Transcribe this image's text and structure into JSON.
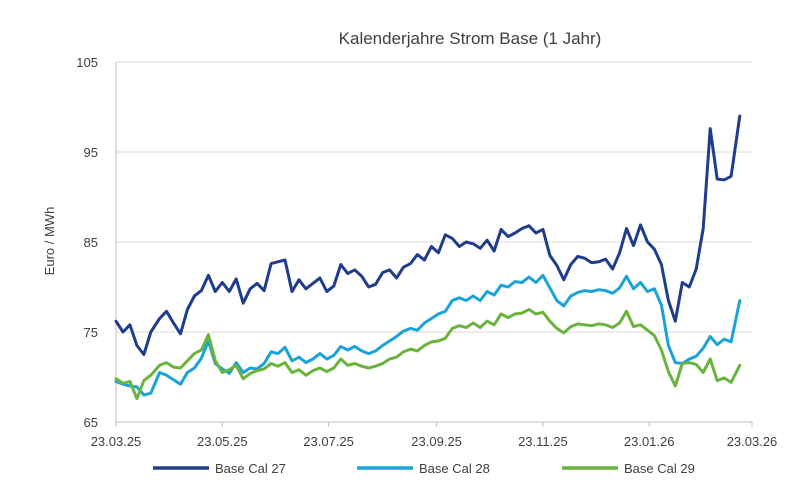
{
  "chart_data": {
    "type": "line",
    "title": "Kalenderjahre Strom Base (1 Jahr)",
    "xlabel": "",
    "ylabel": "Euro / MWh",
    "ylim": [
      65,
      105
    ],
    "yticks": [
      65,
      75,
      85,
      95,
      105
    ],
    "xticks": [
      "23.03.25",
      "23.05.25",
      "23.07.25",
      "23.09.25",
      "23.11.25",
      "23.01.26",
      "23.03.26"
    ],
    "xlim": [
      "2025-03-23",
      "2026-03-23"
    ],
    "grid": "horizontal",
    "legend_position": "bottom",
    "series": [
      {
        "name": "Base Cal 27",
        "color": "#1f3d8a",
        "points": [
          [
            "2025-03-23",
            76.2
          ],
          [
            "2025-03-27",
            75.0
          ],
          [
            "2025-03-31",
            75.8
          ],
          [
            "2025-04-04",
            73.5
          ],
          [
            "2025-04-08",
            72.5
          ],
          [
            "2025-04-12",
            75.0
          ],
          [
            "2025-04-17",
            76.5
          ],
          [
            "2025-04-21",
            77.3
          ],
          [
            "2025-04-25",
            76.0
          ],
          [
            "2025-04-29",
            74.8
          ],
          [
            "2025-05-03",
            77.5
          ],
          [
            "2025-05-07",
            79.0
          ],
          [
            "2025-05-11",
            79.6
          ],
          [
            "2025-05-15",
            81.3
          ],
          [
            "2025-05-19",
            79.5
          ],
          [
            "2025-05-23",
            80.5
          ],
          [
            "2025-05-27",
            79.5
          ],
          [
            "2025-05-31",
            80.9
          ],
          [
            "2025-06-04",
            78.2
          ],
          [
            "2025-06-08",
            79.8
          ],
          [
            "2025-06-12",
            80.4
          ],
          [
            "2025-06-16",
            79.6
          ],
          [
            "2025-06-20",
            82.6
          ],
          [
            "2025-06-24",
            82.8
          ],
          [
            "2025-06-28",
            83.0
          ],
          [
            "2025-07-02",
            79.5
          ],
          [
            "2025-07-06",
            80.8
          ],
          [
            "2025-07-10",
            79.8
          ],
          [
            "2025-07-14",
            80.4
          ],
          [
            "2025-07-18",
            81.0
          ],
          [
            "2025-07-22",
            79.5
          ],
          [
            "2025-07-26",
            80.1
          ],
          [
            "2025-07-30",
            82.5
          ],
          [
            "2025-08-03",
            81.5
          ],
          [
            "2025-08-07",
            81.9
          ],
          [
            "2025-08-11",
            81.2
          ],
          [
            "2025-08-15",
            80.0
          ],
          [
            "2025-08-19",
            80.3
          ],
          [
            "2025-08-23",
            81.6
          ],
          [
            "2025-08-27",
            81.9
          ],
          [
            "2025-08-31",
            81.0
          ],
          [
            "2025-09-04",
            82.2
          ],
          [
            "2025-09-08",
            82.6
          ],
          [
            "2025-09-12",
            83.6
          ],
          [
            "2025-09-16",
            83.0
          ],
          [
            "2025-09-20",
            84.5
          ],
          [
            "2025-09-24",
            83.8
          ],
          [
            "2025-09-28",
            85.8
          ],
          [
            "2025-10-02",
            85.4
          ],
          [
            "2025-10-06",
            84.5
          ],
          [
            "2025-10-10",
            85.0
          ],
          [
            "2025-10-14",
            84.8
          ],
          [
            "2025-10-18",
            84.3
          ],
          [
            "2025-10-22",
            85.2
          ],
          [
            "2025-10-26",
            84.0
          ],
          [
            "2025-10-30",
            86.4
          ],
          [
            "2025-11-03",
            85.6
          ],
          [
            "2025-11-07",
            86.0
          ],
          [
            "2025-11-11",
            86.5
          ],
          [
            "2025-11-15",
            86.8
          ],
          [
            "2025-11-19",
            86.0
          ],
          [
            "2025-11-23",
            86.4
          ],
          [
            "2025-11-27",
            83.5
          ],
          [
            "2025-12-01",
            82.4
          ],
          [
            "2025-12-05",
            80.8
          ],
          [
            "2025-12-09",
            82.5
          ],
          [
            "2025-12-13",
            83.4
          ],
          [
            "2025-12-17",
            83.2
          ],
          [
            "2025-12-21",
            82.7
          ],
          [
            "2025-12-25",
            82.8
          ],
          [
            "2025-12-29",
            83.1
          ],
          [
            "2026-01-02",
            82.0
          ],
          [
            "2026-01-06",
            83.8
          ],
          [
            "2026-01-10",
            86.5
          ],
          [
            "2026-01-14",
            84.6
          ],
          [
            "2026-01-18",
            86.9
          ],
          [
            "2026-01-22",
            85.0
          ],
          [
            "2026-01-26",
            84.2
          ],
          [
            "2026-01-30",
            82.5
          ],
          [
            "2026-02-03",
            78.5
          ],
          [
            "2026-02-07",
            76.2
          ],
          [
            "2026-02-11",
            80.5
          ],
          [
            "2026-02-15",
            80.0
          ],
          [
            "2026-02-19",
            82.0
          ],
          [
            "2026-02-23",
            86.5
          ],
          [
            "2026-02-27",
            97.6
          ],
          [
            "2026-03-03",
            92.0
          ],
          [
            "2026-03-07",
            91.9
          ],
          [
            "2026-03-11",
            92.3
          ],
          [
            "2026-03-16",
            99.0
          ]
        ]
      },
      {
        "name": "Base Cal 28",
        "color": "#1aa3d8",
        "points": [
          [
            "2025-03-23",
            69.5
          ],
          [
            "2025-03-27",
            69.2
          ],
          [
            "2025-03-31",
            69.0
          ],
          [
            "2025-04-04",
            68.9
          ],
          [
            "2025-04-08",
            68.0
          ],
          [
            "2025-04-12",
            68.2
          ],
          [
            "2025-04-17",
            70.5
          ],
          [
            "2025-04-21",
            70.2
          ],
          [
            "2025-04-25",
            69.7
          ],
          [
            "2025-04-29",
            69.2
          ],
          [
            "2025-05-03",
            70.5
          ],
          [
            "2025-05-07",
            71.0
          ],
          [
            "2025-05-11",
            72.1
          ],
          [
            "2025-05-15",
            74.0
          ],
          [
            "2025-05-19",
            71.5
          ],
          [
            "2025-05-23",
            70.9
          ],
          [
            "2025-05-27",
            70.4
          ],
          [
            "2025-05-31",
            71.6
          ],
          [
            "2025-06-04",
            70.5
          ],
          [
            "2025-06-08",
            71.0
          ],
          [
            "2025-06-12",
            70.9
          ],
          [
            "2025-06-16",
            71.5
          ],
          [
            "2025-06-20",
            72.8
          ],
          [
            "2025-06-24",
            72.6
          ],
          [
            "2025-06-28",
            73.3
          ],
          [
            "2025-07-02",
            71.8
          ],
          [
            "2025-07-06",
            72.2
          ],
          [
            "2025-07-10",
            71.6
          ],
          [
            "2025-07-14",
            72.0
          ],
          [
            "2025-07-18",
            72.6
          ],
          [
            "2025-07-22",
            72.0
          ],
          [
            "2025-07-26",
            72.4
          ],
          [
            "2025-07-30",
            73.4
          ],
          [
            "2025-08-03",
            73.0
          ],
          [
            "2025-08-07",
            73.4
          ],
          [
            "2025-08-11",
            72.9
          ],
          [
            "2025-08-15",
            72.6
          ],
          [
            "2025-08-19",
            72.9
          ],
          [
            "2025-08-23",
            73.5
          ],
          [
            "2025-08-27",
            74.0
          ],
          [
            "2025-08-31",
            74.5
          ],
          [
            "2025-09-04",
            75.1
          ],
          [
            "2025-09-08",
            75.4
          ],
          [
            "2025-09-12",
            75.2
          ],
          [
            "2025-09-16",
            76.0
          ],
          [
            "2025-09-20",
            76.5
          ],
          [
            "2025-09-24",
            77.0
          ],
          [
            "2025-09-28",
            77.3
          ],
          [
            "2025-10-02",
            78.5
          ],
          [
            "2025-10-06",
            78.8
          ],
          [
            "2025-10-10",
            78.5
          ],
          [
            "2025-10-14",
            79.0
          ],
          [
            "2025-10-18",
            78.5
          ],
          [
            "2025-10-22",
            79.5
          ],
          [
            "2025-10-26",
            79.1
          ],
          [
            "2025-10-30",
            80.2
          ],
          [
            "2025-11-03",
            80.0
          ],
          [
            "2025-11-07",
            80.6
          ],
          [
            "2025-11-11",
            80.5
          ],
          [
            "2025-11-15",
            81.1
          ],
          [
            "2025-11-19",
            80.5
          ],
          [
            "2025-11-23",
            81.3
          ],
          [
            "2025-11-27",
            79.9
          ],
          [
            "2025-12-01",
            78.5
          ],
          [
            "2025-12-05",
            77.9
          ],
          [
            "2025-12-09",
            79.0
          ],
          [
            "2025-12-13",
            79.4
          ],
          [
            "2025-12-17",
            79.6
          ],
          [
            "2025-12-21",
            79.5
          ],
          [
            "2025-12-25",
            79.7
          ],
          [
            "2025-12-29",
            79.6
          ],
          [
            "2026-01-02",
            79.3
          ],
          [
            "2026-01-06",
            79.9
          ],
          [
            "2026-01-10",
            81.2
          ],
          [
            "2026-01-14",
            79.8
          ],
          [
            "2026-01-18",
            80.5
          ],
          [
            "2026-01-22",
            79.5
          ],
          [
            "2026-01-26",
            79.8
          ],
          [
            "2026-01-30",
            78.0
          ],
          [
            "2026-02-03",
            73.5
          ],
          [
            "2026-02-07",
            71.6
          ],
          [
            "2026-02-11",
            71.5
          ],
          [
            "2026-02-15",
            72.0
          ],
          [
            "2026-02-19",
            72.3
          ],
          [
            "2026-02-23",
            73.2
          ],
          [
            "2026-02-27",
            74.5
          ],
          [
            "2026-03-03",
            73.6
          ],
          [
            "2026-03-07",
            74.2
          ],
          [
            "2026-03-11",
            73.9
          ],
          [
            "2026-03-16",
            78.5
          ]
        ]
      },
      {
        "name": "Base Cal 29",
        "color": "#6ab43e",
        "points": [
          [
            "2025-03-23",
            69.8
          ],
          [
            "2025-03-27",
            69.3
          ],
          [
            "2025-03-31",
            69.5
          ],
          [
            "2025-04-04",
            67.6
          ],
          [
            "2025-04-08",
            69.6
          ],
          [
            "2025-04-12",
            70.2
          ],
          [
            "2025-04-17",
            71.3
          ],
          [
            "2025-04-21",
            71.6
          ],
          [
            "2025-04-25",
            71.1
          ],
          [
            "2025-04-29",
            71.0
          ],
          [
            "2025-05-03",
            71.8
          ],
          [
            "2025-05-07",
            72.6
          ],
          [
            "2025-05-11",
            73.0
          ],
          [
            "2025-05-15",
            74.7
          ],
          [
            "2025-05-19",
            71.8
          ],
          [
            "2025-05-23",
            70.5
          ],
          [
            "2025-05-27",
            70.8
          ],
          [
            "2025-05-31",
            71.3
          ],
          [
            "2025-06-04",
            69.8
          ],
          [
            "2025-06-08",
            70.4
          ],
          [
            "2025-06-12",
            70.7
          ],
          [
            "2025-06-16",
            70.9
          ],
          [
            "2025-06-20",
            71.5
          ],
          [
            "2025-06-24",
            71.2
          ],
          [
            "2025-06-28",
            71.6
          ],
          [
            "2025-07-02",
            70.5
          ],
          [
            "2025-07-06",
            70.8
          ],
          [
            "2025-07-10",
            70.2
          ],
          [
            "2025-07-14",
            70.7
          ],
          [
            "2025-07-18",
            71.0
          ],
          [
            "2025-07-22",
            70.6
          ],
          [
            "2025-07-26",
            71.0
          ],
          [
            "2025-07-30",
            72.0
          ],
          [
            "2025-08-03",
            71.3
          ],
          [
            "2025-08-07",
            71.5
          ],
          [
            "2025-08-11",
            71.2
          ],
          [
            "2025-08-15",
            71.0
          ],
          [
            "2025-08-19",
            71.2
          ],
          [
            "2025-08-23",
            71.5
          ],
          [
            "2025-08-27",
            72.0
          ],
          [
            "2025-08-31",
            72.2
          ],
          [
            "2025-09-04",
            72.8
          ],
          [
            "2025-09-08",
            73.1
          ],
          [
            "2025-09-12",
            72.9
          ],
          [
            "2025-09-16",
            73.5
          ],
          [
            "2025-09-20",
            73.9
          ],
          [
            "2025-09-24",
            74.0
          ],
          [
            "2025-09-28",
            74.3
          ],
          [
            "2025-10-02",
            75.4
          ],
          [
            "2025-10-06",
            75.7
          ],
          [
            "2025-10-10",
            75.5
          ],
          [
            "2025-10-14",
            76.0
          ],
          [
            "2025-10-18",
            75.5
          ],
          [
            "2025-10-22",
            76.2
          ],
          [
            "2025-10-26",
            75.8
          ],
          [
            "2025-10-30",
            77.0
          ],
          [
            "2025-11-03",
            76.6
          ],
          [
            "2025-11-07",
            77.0
          ],
          [
            "2025-11-11",
            77.1
          ],
          [
            "2025-11-15",
            77.5
          ],
          [
            "2025-11-19",
            77.0
          ],
          [
            "2025-11-23",
            77.2
          ],
          [
            "2025-11-27",
            76.2
          ],
          [
            "2025-12-01",
            75.4
          ],
          [
            "2025-12-05",
            74.9
          ],
          [
            "2025-12-09",
            75.6
          ],
          [
            "2025-12-13",
            75.9
          ],
          [
            "2025-12-17",
            75.8
          ],
          [
            "2025-12-21",
            75.7
          ],
          [
            "2025-12-25",
            75.9
          ],
          [
            "2025-12-29",
            75.8
          ],
          [
            "2026-01-02",
            75.5
          ],
          [
            "2026-01-06",
            76.0
          ],
          [
            "2026-01-10",
            77.3
          ],
          [
            "2026-01-14",
            75.6
          ],
          [
            "2026-01-18",
            75.8
          ],
          [
            "2026-01-22",
            75.2
          ],
          [
            "2026-01-26",
            74.6
          ],
          [
            "2026-01-30",
            73.0
          ],
          [
            "2026-02-03",
            70.6
          ],
          [
            "2026-02-07",
            69.0
          ],
          [
            "2026-02-11",
            71.5
          ],
          [
            "2026-02-15",
            71.6
          ],
          [
            "2026-02-19",
            71.4
          ],
          [
            "2026-02-23",
            70.5
          ],
          [
            "2026-02-27",
            72.0
          ],
          [
            "2026-03-03",
            69.6
          ],
          [
            "2026-03-07",
            69.9
          ],
          [
            "2026-03-11",
            69.4
          ],
          [
            "2026-03-16",
            71.3
          ]
        ]
      }
    ]
  }
}
